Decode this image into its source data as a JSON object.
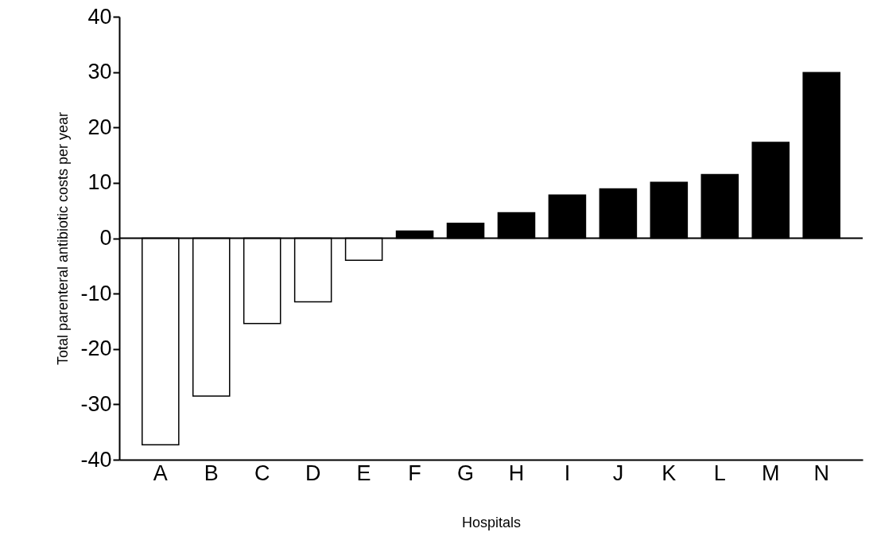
{
  "chart_data": {
    "type": "bar",
    "xlabel": "Hospitals",
    "ylabel": "Total parenteral antibiotic costs per year",
    "categories": [
      "A",
      "B",
      "C",
      "D",
      "E",
      "F",
      "G",
      "H",
      "I",
      "J",
      "K",
      "L",
      "M",
      "N"
    ],
    "values": [
      -37.3,
      -28.5,
      -15.4,
      -11.5,
      -4.0,
      1.3,
      2.7,
      4.6,
      7.8,
      8.9,
      10.1,
      11.5,
      17.3,
      29.9
    ],
    "colors": [
      "#ffffff",
      "#ffffff",
      "#ffffff",
      "#ffffff",
      "#ffffff",
      "#000000",
      "#000000",
      "#000000",
      "#000000",
      "#000000",
      "#000000",
      "#000000",
      "#000000",
      "#000000"
    ],
    "ylim": [
      -40,
      40
    ],
    "yticks": [
      -40,
      -30,
      -20,
      -10,
      0,
      10,
      20,
      30,
      40
    ],
    "ref_lines": [
      {
        "axis": "y",
        "value": 0
      }
    ],
    "grid": false
  }
}
